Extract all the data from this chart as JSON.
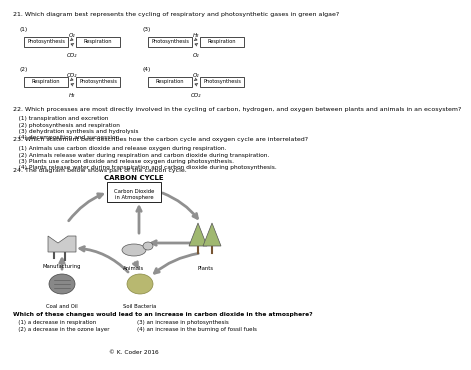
{
  "q21_title": "21. Which diagram best represents the cycling of respiratory and photosynthetic gases in green algae?",
  "q22_title": "22. Which processes are most directly involved in the cycling of carbon, hydrogen, and oxygen between plants and animals in an ecosystem?",
  "q22_options": [
    "   (1) transpiration and excretion",
    "   (2) photosynthesis and respiration",
    "   (3) dehydration synthesis and hydrolysis",
    "   (4) decomposition and succession"
  ],
  "q23_title": "23. Which statement best describes how the carbon cycle and oxygen cycle are interrelated?",
  "q23_options": [
    "   (1) Animals use carbon dioxide and release oxygen during respiration.",
    "   (2) Animals release water during respiration and carbon dioxide during transpiration.",
    "   (3) Plants use carbon dioxide and release oxygen during photosynthesis.",
    "   (4) Plants release water during transpiration and carbon dioxide during photosynthesis."
  ],
  "q24_title": "24. The diagram below shows part of the carbon cycle.",
  "carbon_cycle_title": "CARBON CYCLE",
  "q24_sub": "Which of these changes would lead to an increase in carbon dioxide in the atmosphere?",
  "q24_options_left": [
    "   (1) a decrease in respiration",
    "   (2) a decrease in the ozone layer"
  ],
  "q24_options_right": [
    "(3) an increase in photosynthesis",
    "(4) an increase in the burning of fossil fuels"
  ],
  "copyright": "© K. Coder 2016",
  "bg_color": "#ffffff",
  "diagrams": [
    {
      "num": 1,
      "left": "Photosynthesis",
      "right": "Respiration",
      "top": "O₂",
      "bot": "CO₂"
    },
    {
      "num": 3,
      "left": "Photosynthesis",
      "right": "Respiration",
      "top": "H₂",
      "bot": "O₂"
    },
    {
      "num": 2,
      "left": "Respiration",
      "right": "Photosynthesis",
      "top": "CO₂",
      "bot": "H₂"
    },
    {
      "num": 4,
      "left": "Respiration",
      "right": "Photosynthesis",
      "top": "O₂",
      "bot": "CO₂"
    }
  ]
}
